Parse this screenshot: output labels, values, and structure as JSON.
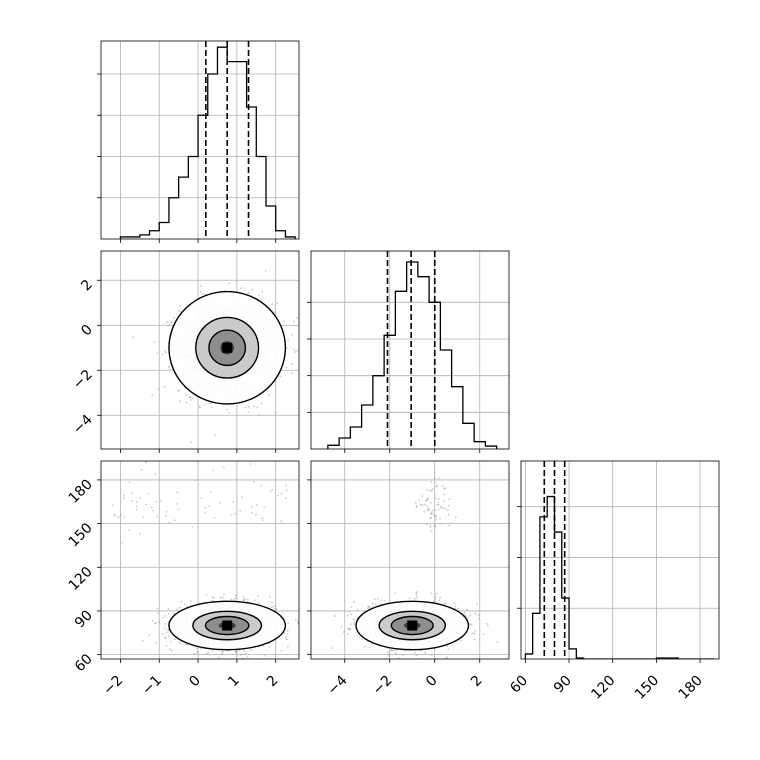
{
  "chart_data": {
    "type": "corner",
    "params": [
      {
        "range": [
          -2.5,
          2.6
        ],
        "ticks": [
          -2,
          -1,
          0,
          1,
          2
        ],
        "tick_labels": [
          "−2",
          "−1",
          "0",
          "1",
          "2"
        ]
      },
      {
        "range": [
          -5.5,
          3.3
        ],
        "ticks": [
          -4,
          -2,
          0,
          2
        ],
        "tick_labels": [
          "−4",
          "−2",
          "0",
          "2"
        ]
      },
      {
        "range": [
          57,
          193
        ],
        "ticks": [
          60,
          90,
          120,
          150,
          180
        ],
        "tick_labels": [
          "60",
          "90",
          "120",
          "150",
          "180"
        ]
      }
    ],
    "quantiles": [
      [
        0.2,
        0.75,
        1.3
      ],
      [
        -2.1,
        -1.05,
        0.0
      ],
      [
        73,
        80,
        87
      ]
    ],
    "histograms": [
      {
        "bin_edges": [
          -2.0,
          -1.75,
          -1.5,
          -1.25,
          -1.0,
          -0.75,
          -0.5,
          -0.25,
          0.0,
          0.25,
          0.5,
          0.75,
          1.0,
          1.25,
          1.5,
          1.75,
          2.0,
          2.25,
          2.5
        ],
        "counts": [
          0.005,
          0.005,
          0.01,
          0.02,
          0.04,
          0.1,
          0.15,
          0.2,
          0.3,
          0.4,
          0.465,
          0.43,
          0.43,
          0.32,
          0.2,
          0.08,
          0.02,
          0.005
        ],
        "ylim": [
          0,
          0.48
        ],
        "yticks": [
          0.1,
          0.2,
          0.3,
          0.4
        ]
      },
      {
        "bin_edges": [
          -4.75,
          -4.25,
          -3.75,
          -3.25,
          -2.75,
          -2.25,
          -1.75,
          -1.25,
          -0.75,
          -0.25,
          0.25,
          0.75,
          1.25,
          1.75,
          2.25,
          2.75
        ],
        "counts": [
          0.005,
          0.015,
          0.03,
          0.06,
          0.1,
          0.155,
          0.215,
          0.255,
          0.235,
          0.2,
          0.135,
          0.085,
          0.035,
          0.01,
          0.004
        ],
        "ylim": [
          0,
          0.27
        ],
        "yticks": [
          0.05,
          0.1,
          0.15,
          0.2
        ]
      },
      {
        "bin_edges": [
          60,
          65,
          70,
          75,
          80,
          85,
          90,
          95,
          100,
          105,
          110,
          115,
          120,
          125,
          130,
          135,
          140,
          145,
          150,
          155,
          160,
          165,
          170,
          175,
          180,
          185,
          190
        ],
        "counts": [
          0.005,
          0.045,
          0.14,
          0.16,
          0.125,
          0.06,
          0.01,
          0.001,
          0,
          0,
          0,
          0,
          0,
          0,
          0,
          0,
          0,
          0,
          0.001,
          0.001,
          0.001,
          0,
          0,
          0,
          0,
          0
        ],
        "ylim": [
          0,
          0.195
        ],
        "yticks": [
          0.05,
          0.1,
          0.15
        ]
      }
    ],
    "scatter_2d": [
      {
        "panel": "x-y",
        "x_param": 0,
        "y_param": 1,
        "center": [
          0.75,
          -1.0
        ],
        "sd": [
          0.6,
          1.0
        ],
        "contour_widths": [
          1.02,
          0.55,
          0.32,
          0.12
        ]
      },
      {
        "panel": "x-z",
        "x_param": 0,
        "y_param": 2,
        "center": [
          0.75,
          80
        ],
        "sd": [
          0.6,
          7.0
        ],
        "contour_widths": [
          1.02,
          0.6,
          0.38,
          0.15
        ],
        "outlier_cluster": {
          "center_y": 165,
          "sd_y": 10
        }
      },
      {
        "panel": "y-z",
        "x_param": 1,
        "y_param": 2,
        "center": [
          -1.0,
          80
        ],
        "sd": [
          1.0,
          7.0
        ],
        "contour_widths": [
          1.02,
          0.6,
          0.38,
          0.15
        ],
        "outlier_cluster": {
          "center_x": 0.0,
          "center_y": 163,
          "sd_x": 0.45,
          "sd_y": 9
        }
      }
    ],
    "grid": true,
    "colors": {
      "lines": "#000000",
      "grid": "#b0b0b0",
      "points": "#8c8c8c"
    }
  }
}
